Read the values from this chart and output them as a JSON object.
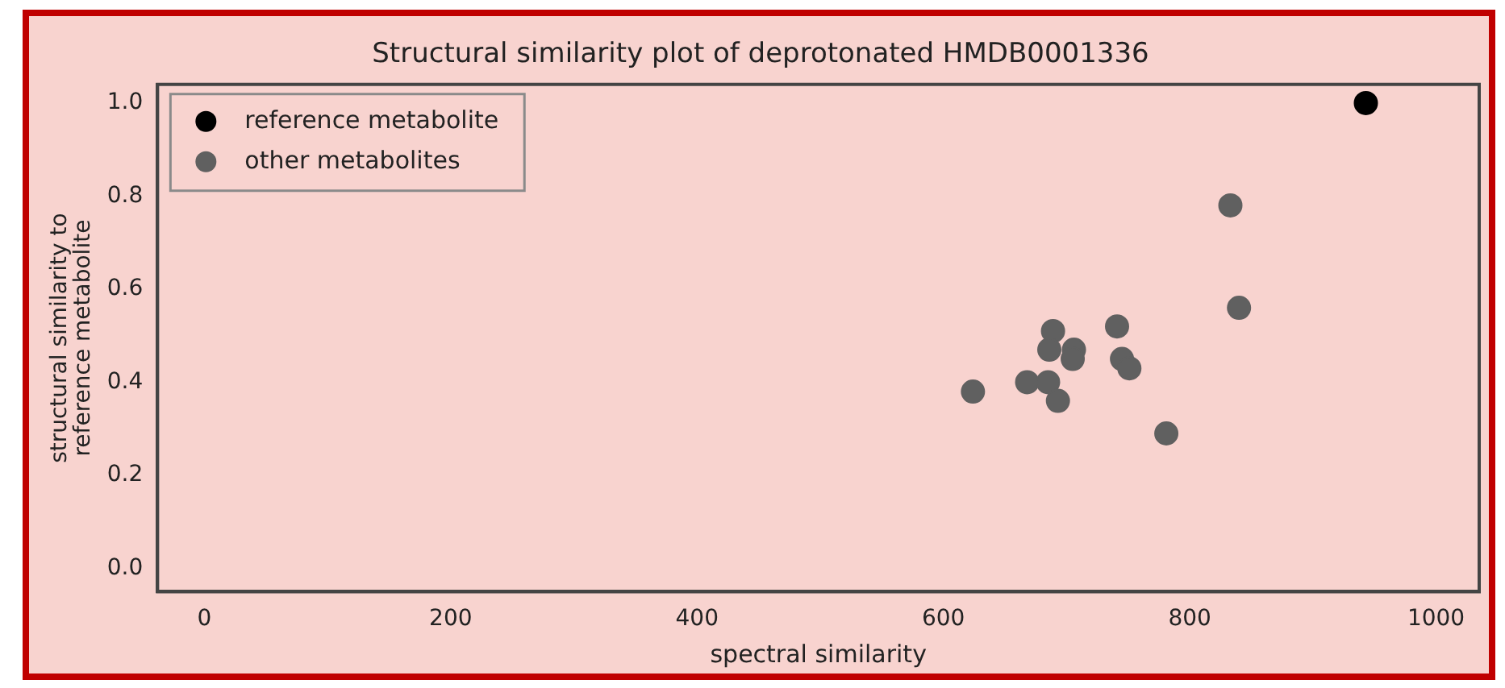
{
  "chart_data": {
    "type": "scatter",
    "title": "Structural similarity plot of deprotonated HMDB0001336",
    "xlabel": "spectral similarity",
    "ylabel": "structural similarity to\nreference metabolite",
    "series": [
      {
        "name": "reference metabolite",
        "color": "#000000",
        "x": [
          943
        ],
        "values": [
          1.0
        ]
      },
      {
        "name": "other metabolites",
        "color": "#606060",
        "x": [
          833,
          840,
          741,
          689,
          686,
          706,
          705,
          745,
          751,
          624,
          668,
          685,
          693,
          781
        ],
        "values": [
          0.78,
          0.56,
          0.52,
          0.51,
          0.47,
          0.47,
          0.45,
          0.45,
          0.43,
          0.38,
          0.4,
          0.4,
          0.36,
          0.29
        ]
      }
    ],
    "xlim": [
      -38,
      1035
    ],
    "xticks": [
      0,
      200,
      400,
      600,
      800,
      1000
    ],
    "ylim": [
      -0.05,
      1.04
    ],
    "yticks": [
      {
        "value": 0,
        "label": "0.0"
      },
      0.2,
      0.4,
      0.6,
      0.8,
      {
        "value": 1,
        "label": "1.0"
      }
    ],
    "legend": "top left",
    "marker": "circle",
    "grid": false
  }
}
